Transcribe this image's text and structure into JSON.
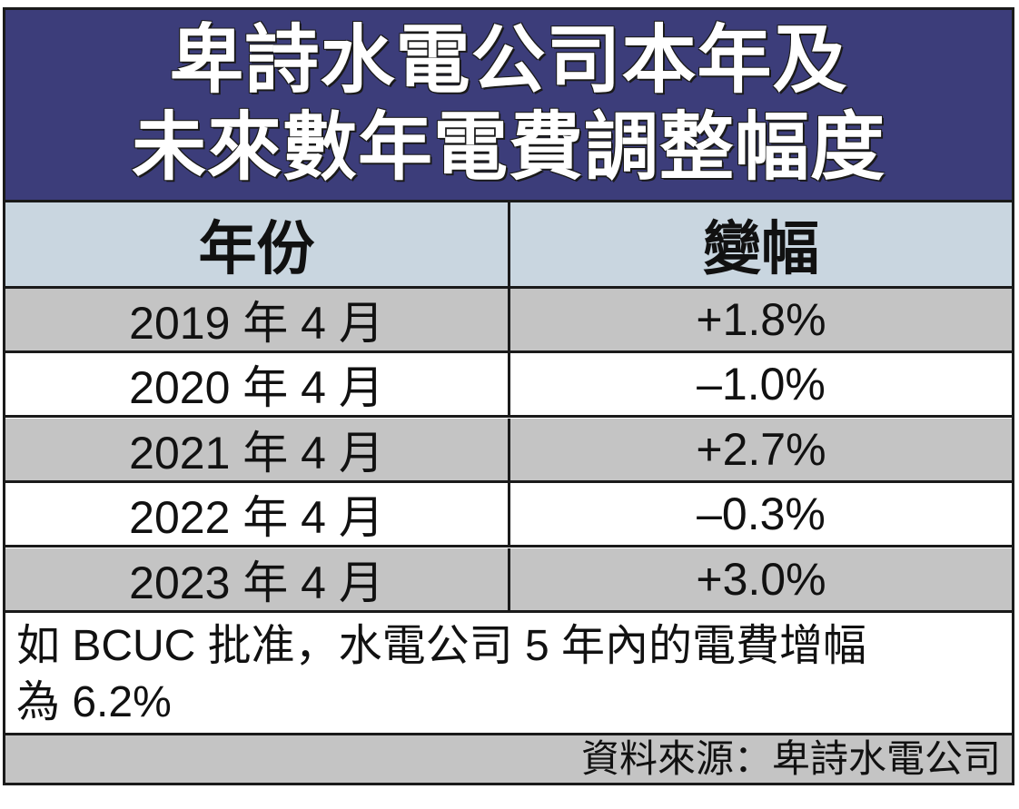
{
  "title": {
    "line1": "卑詩水電公司本年及",
    "line2": "未來數年電費調整幅度"
  },
  "chart_data": {
    "type": "table",
    "columns": [
      "年份",
      "變幅"
    ],
    "rows": [
      [
        "2019 年 4 月",
        "+1.8%"
      ],
      [
        "2020 年 4 月",
        "–1.0%"
      ],
      [
        "2021 年 4 月",
        "+2.7%"
      ],
      [
        "2022 年 4 月",
        "–0.3%"
      ],
      [
        "2023 年 4 月",
        "+3.0%"
      ]
    ],
    "values": [
      1.8,
      -1.0,
      2.7,
      -0.3,
      3.0
    ]
  },
  "note": {
    "line1": "如 BCUC 批准，水電公司 5 年內的電費增幅",
    "line2": "為 6.2%"
  },
  "source": "資料來源：卑詩水電公司",
  "colors": {
    "title_bg": "#3c3d7a",
    "header_bg": "#c9d6e0",
    "grey_row": "#c4c4c4",
    "white_row": "#ffffff"
  }
}
